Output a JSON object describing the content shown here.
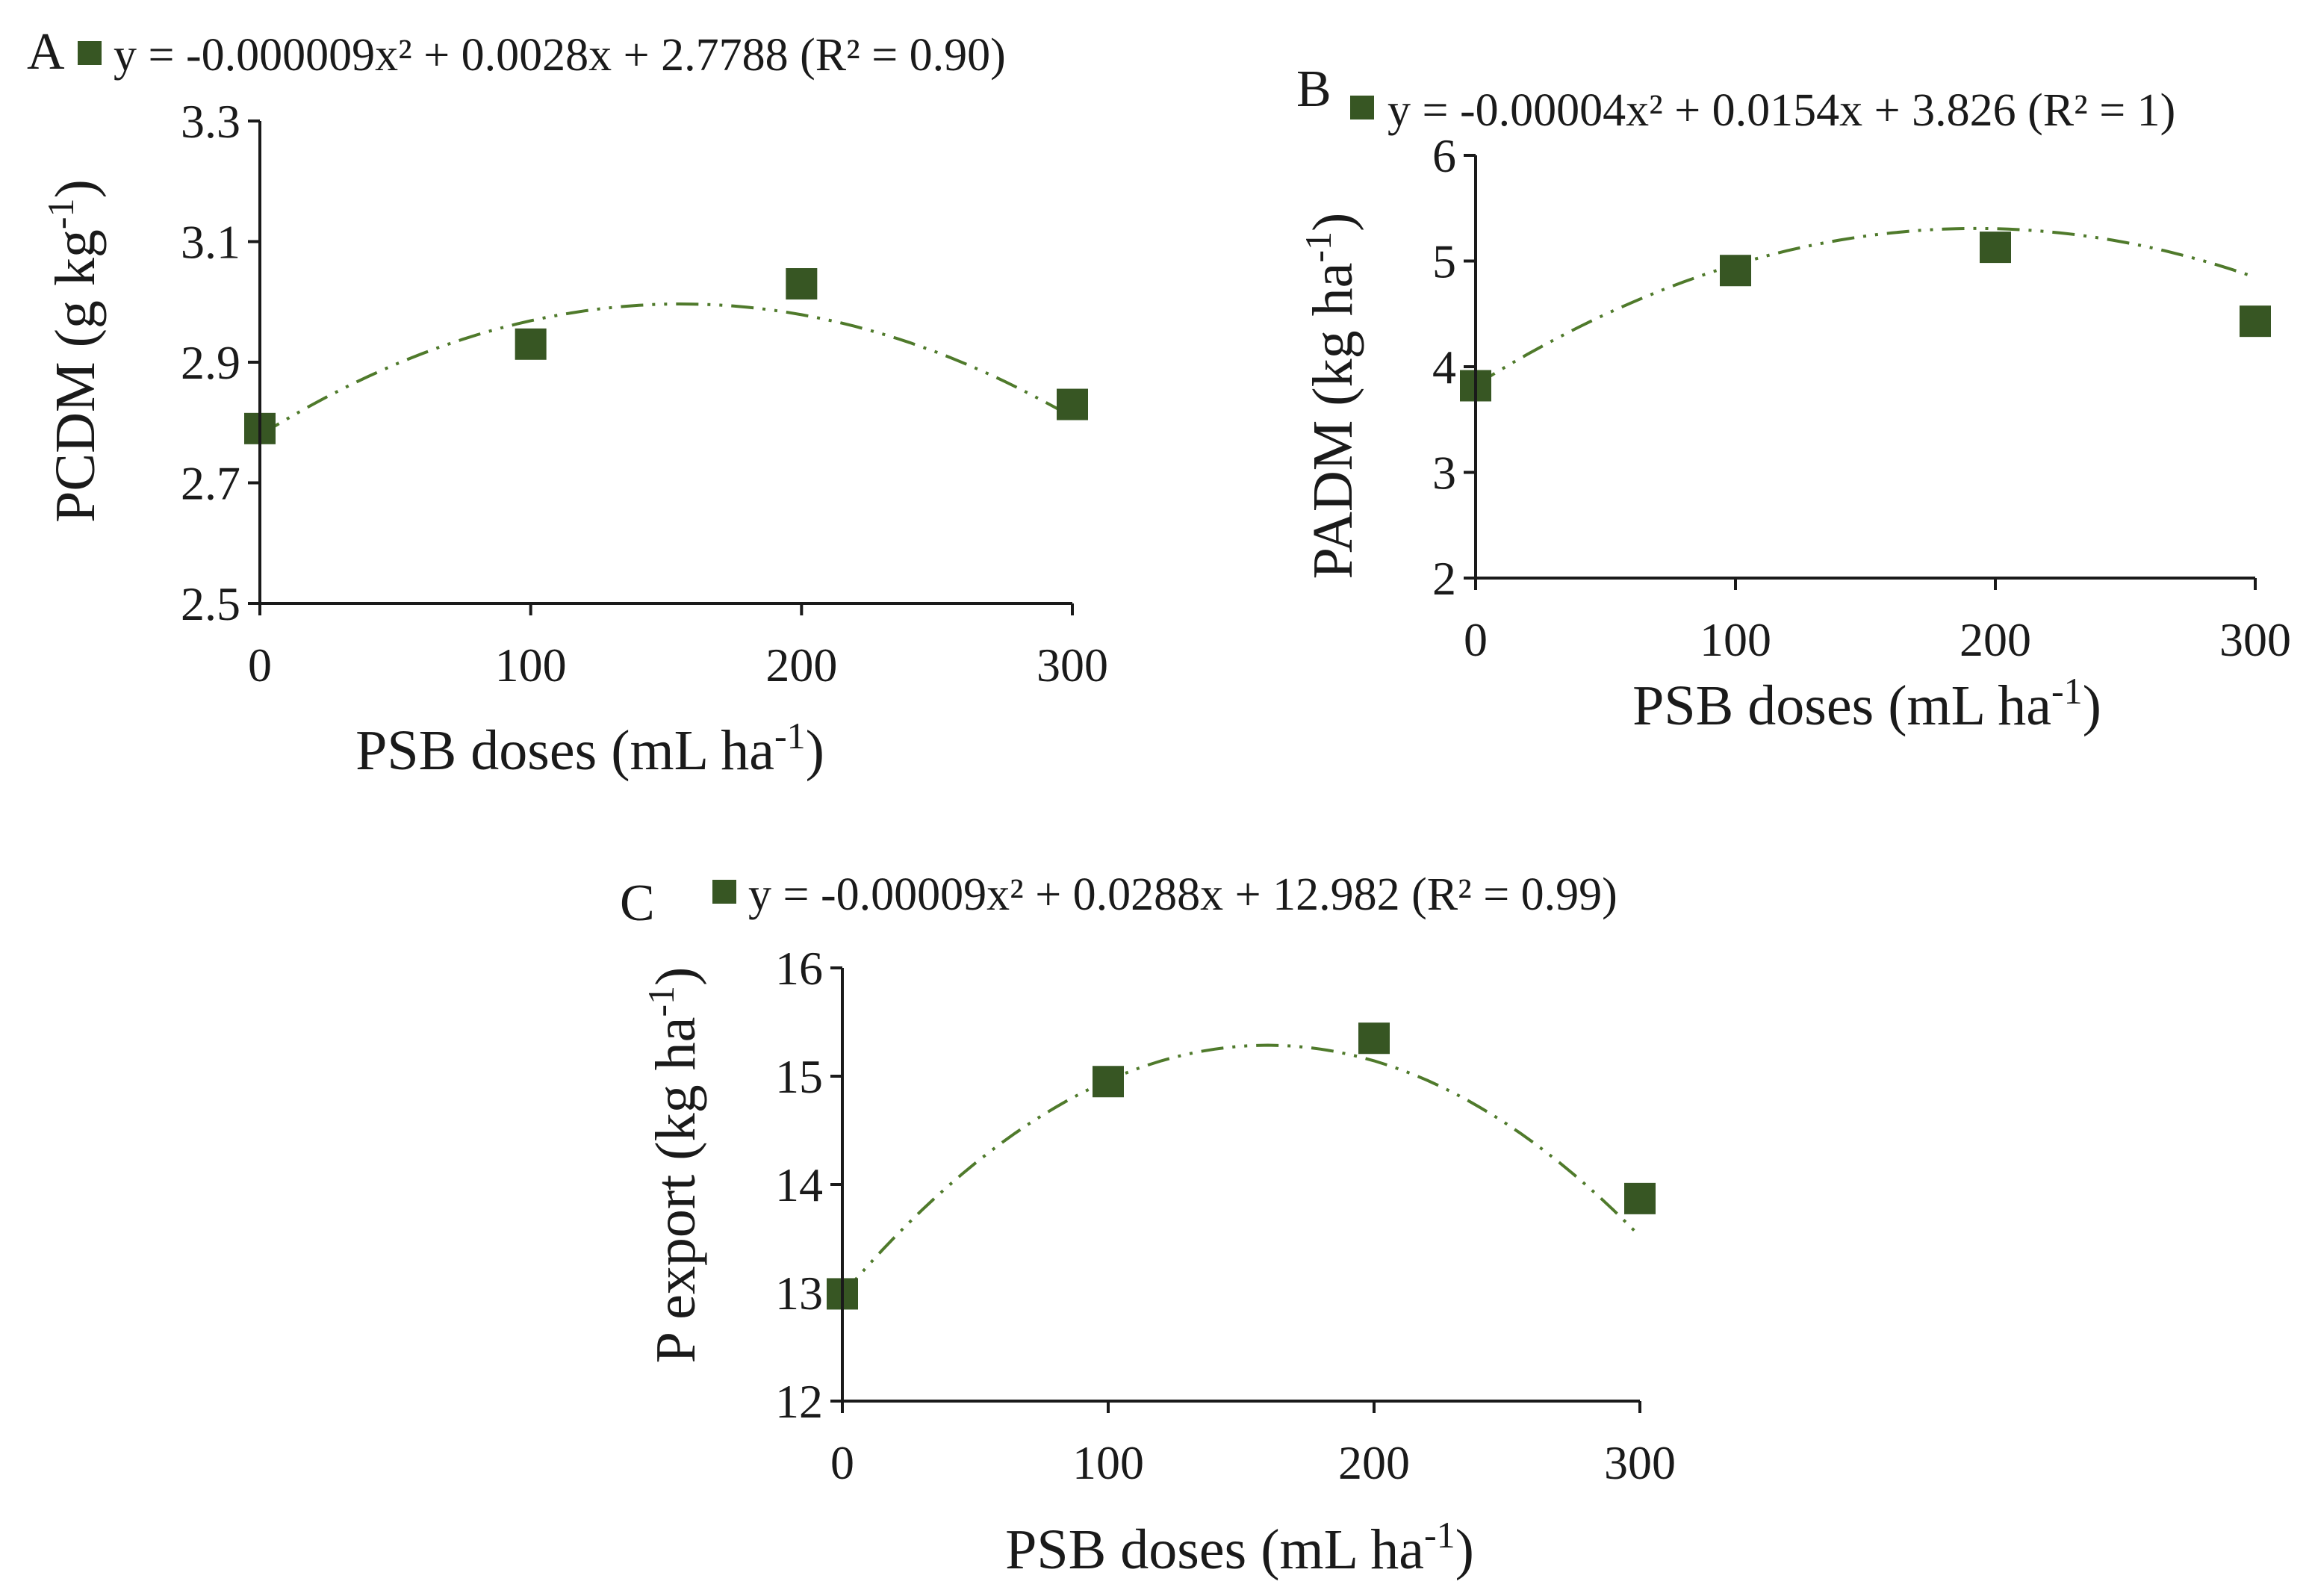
{
  "chart_data": [
    {
      "type": "scatter",
      "panel": "A",
      "equation": "y = -0.000009x² + 0.0028x + 2.7788 (R² = 0.90)",
      "xlabel": "PSB doses (mL ha",
      "xlabel_sup": "-1",
      "xlabel_end": ")",
      "ylabel": "PCDM (g kg",
      "ylabel_sup": "-1",
      "ylabel_end": ")",
      "x": [
        0,
        100,
        200,
        300
      ],
      "y": [
        2.79,
        2.93,
        3.03,
        2.83
      ],
      "xlim": [
        0,
        300
      ],
      "ylim": [
        2.5,
        3.3
      ],
      "xticks": [
        "0",
        "100",
        "200",
        "300"
      ],
      "yticks": [
        "2.5",
        "2.7",
        "2.9",
        "3.1",
        "3.3"
      ],
      "trend": {
        "a": -9e-06,
        "b": 0.0028,
        "c": 2.7788
      }
    },
    {
      "type": "scatter",
      "panel": "B",
      "equation": "y = -0.00004x² + 0.0154x + 3.826 (R² = 1)",
      "xlabel": "PSB doses (mL ha",
      "xlabel_sup": "-1",
      "xlabel_end": ")",
      "ylabel": "PADM (kg ha",
      "ylabel_sup": "-1",
      "ylabel_end": ")",
      "x": [
        0,
        100,
        200,
        300
      ],
      "y": [
        3.82,
        4.91,
        5.13,
        4.43
      ],
      "xlim": [
        0,
        300
      ],
      "ylim": [
        2,
        6
      ],
      "xticks": [
        "0",
        "100",
        "200",
        "300"
      ],
      "yticks": [
        "2",
        "3",
        "4",
        "5",
        "6"
      ],
      "trend": {
        "a": -4e-05,
        "b": 0.0154,
        "c": 3.826
      }
    },
    {
      "type": "scatter",
      "panel": "C",
      "equation": "y = -0.00009x² + 0.0288x + 12.982 (R² = 0.99)",
      "xlabel": "PSB doses (mL ha",
      "xlabel_sup": "-1",
      "xlabel_end": ")",
      "ylabel": "P export (kg ha",
      "ylabel_sup": "-1",
      "ylabel_end": ")",
      "x": [
        0,
        100,
        200,
        300
      ],
      "y": [
        12.99,
        14.95,
        15.35,
        13.87
      ],
      "xlim": [
        0,
        300
      ],
      "ylim": [
        12,
        16
      ],
      "xticks": [
        "0",
        "100",
        "200",
        "300"
      ],
      "yticks": [
        "12",
        "13",
        "14",
        "15",
        "16"
      ],
      "trend": {
        "a": -9e-05,
        "b": 0.0288,
        "c": 12.982
      }
    }
  ],
  "colors": {
    "marker": "#375623",
    "trendline": "#4f7a2b",
    "axis": "#1a1a1a"
  }
}
